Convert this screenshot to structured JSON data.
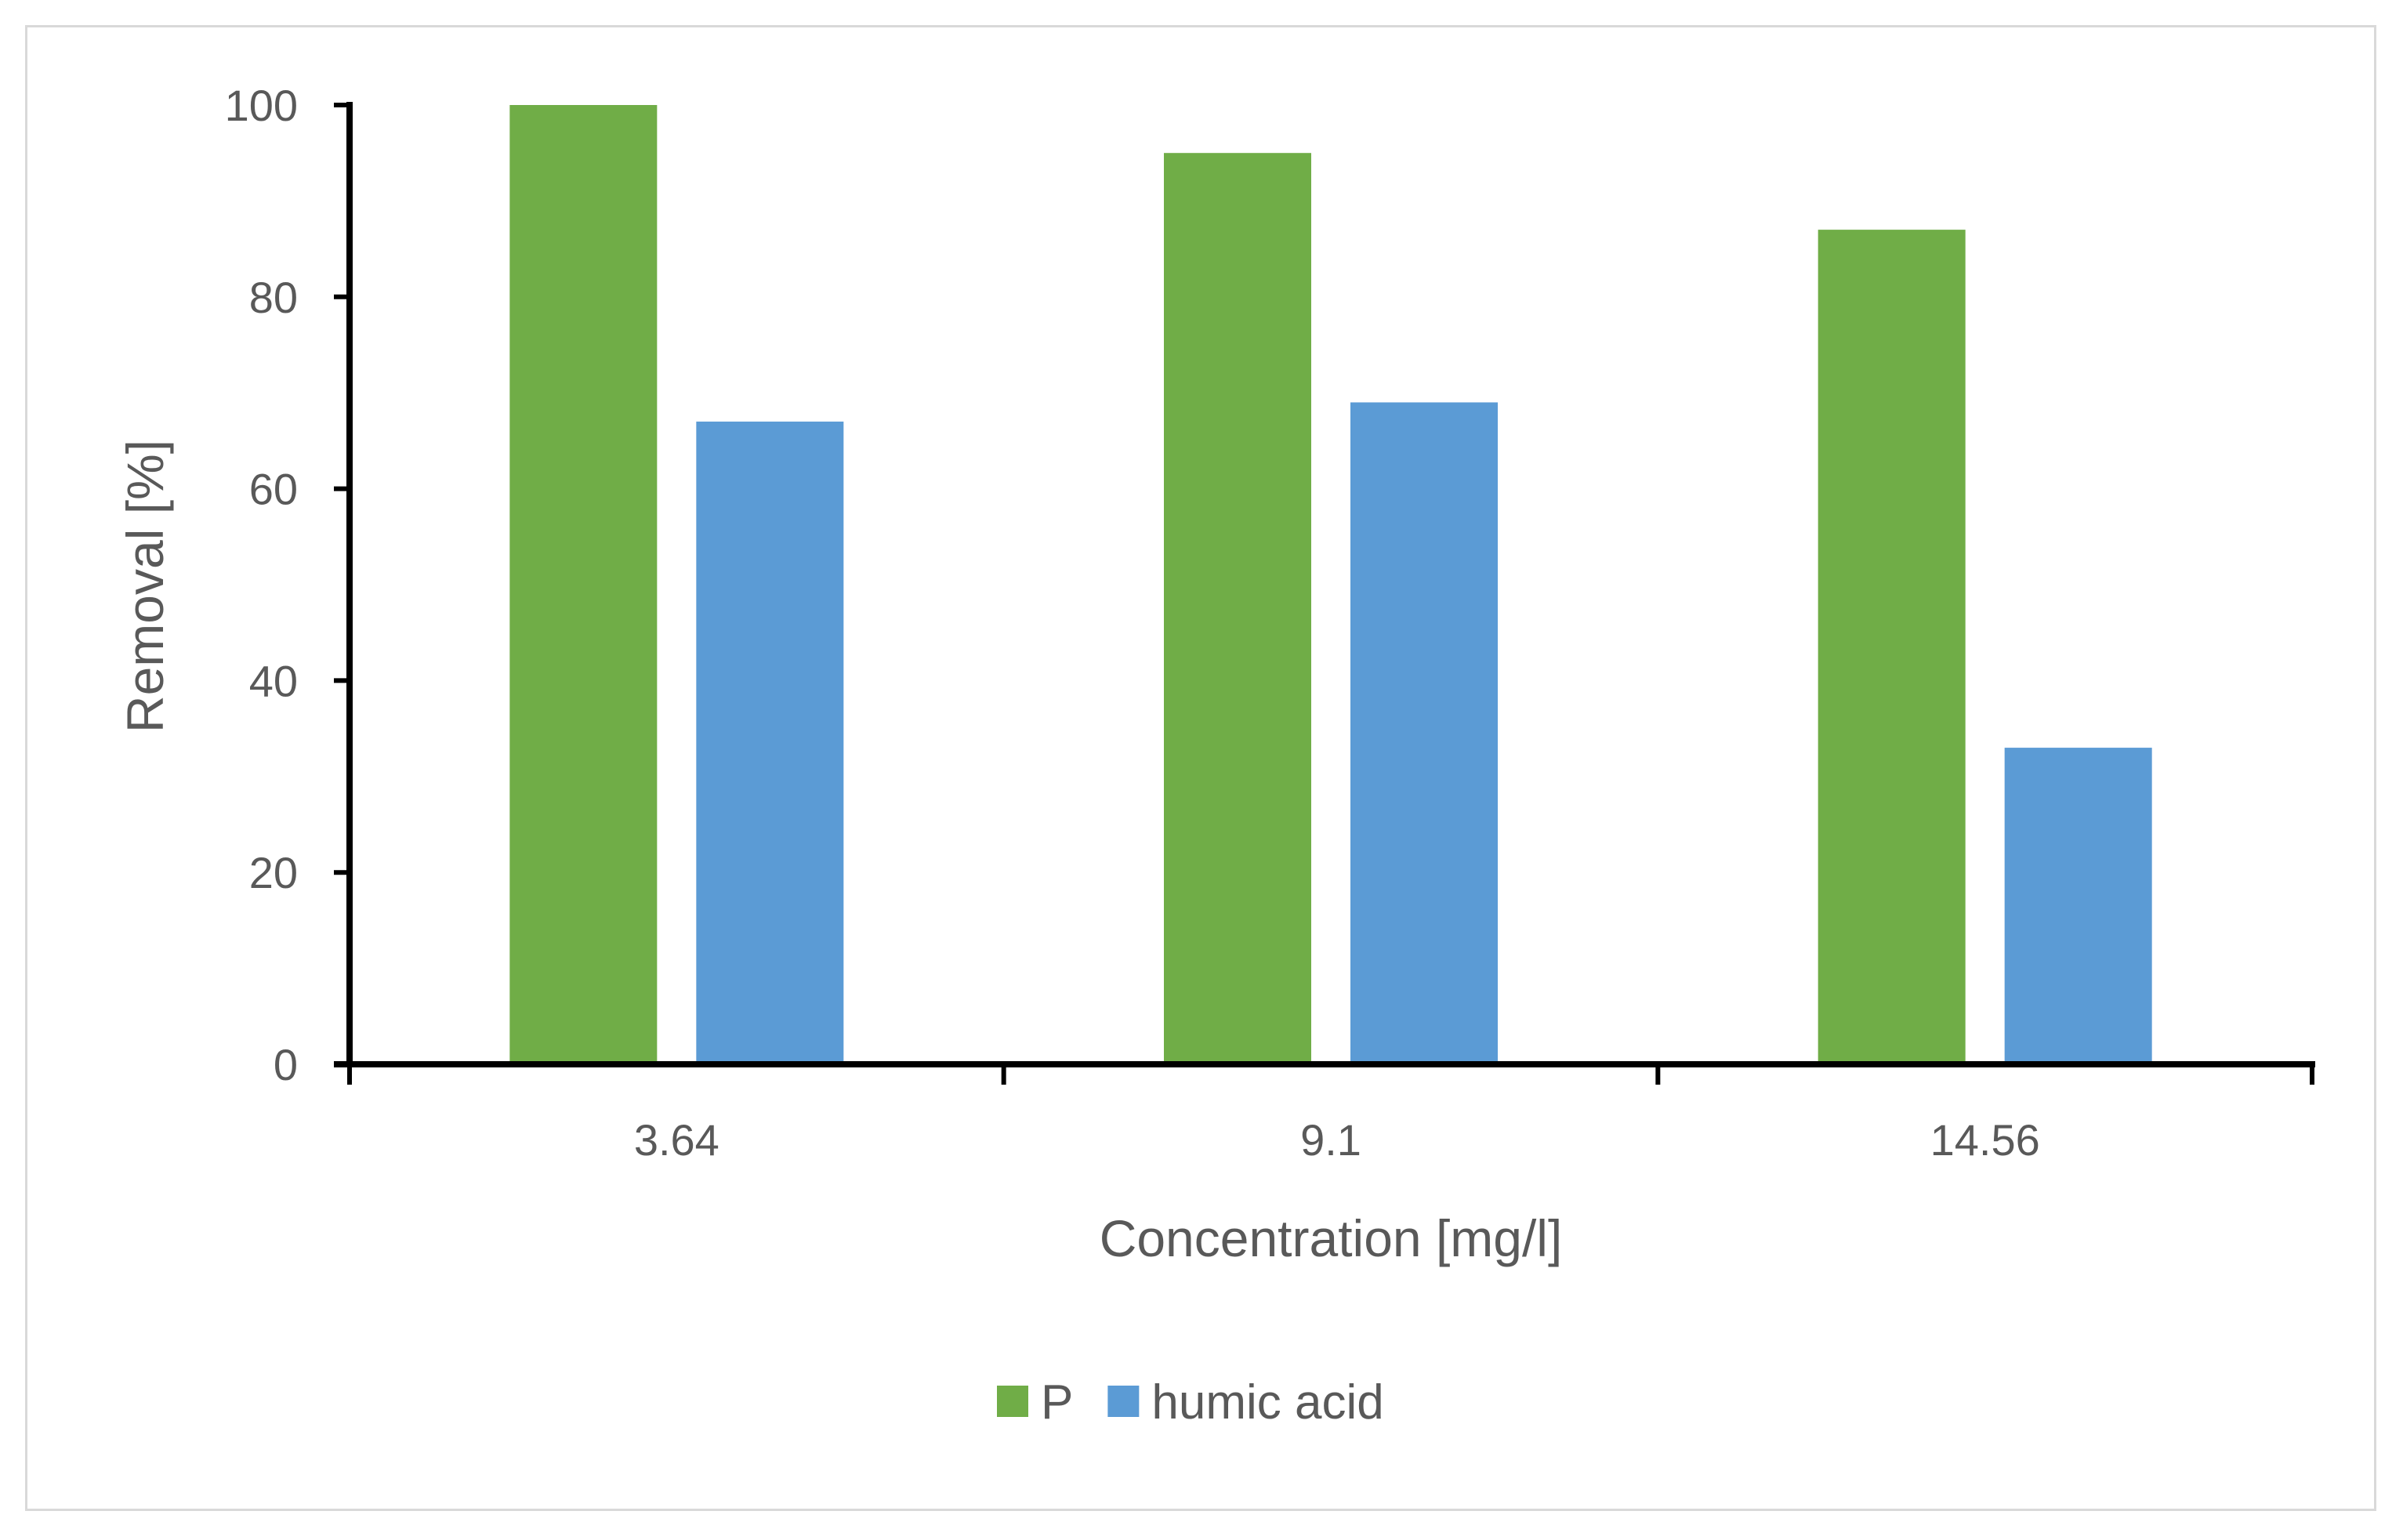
{
  "chart_data": {
    "type": "bar",
    "categories": [
      "3.64",
      "9.1",
      "14.56"
    ],
    "series": [
      {
        "name": "P",
        "values": [
          100,
          95,
          87
        ],
        "color": "#70ad47"
      },
      {
        "name": "humic acid",
        "values": [
          67,
          69,
          33
        ],
        "color": "#5b9bd5"
      }
    ],
    "title": "",
    "xlabel": "Concentration [mg/l]",
    "ylabel": "Removal [%]",
    "ylim": [
      0,
      100
    ],
    "yticks": [
      "0",
      "20",
      "40",
      "60",
      "80",
      "100"
    ],
    "grid": false,
    "legend_position": "bottom",
    "axis_color": "#000000",
    "frame_color": "#d9d9d9"
  }
}
